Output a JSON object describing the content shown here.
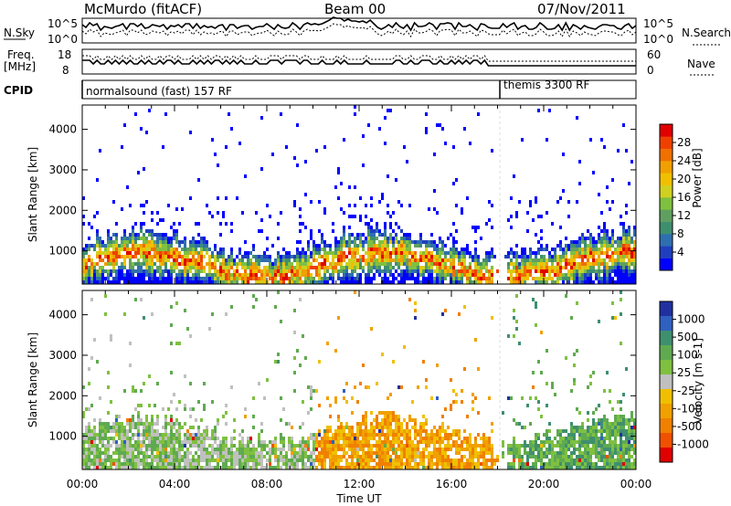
{
  "header": {
    "station": "McMurdo (fitACF)",
    "beam": "Beam 00",
    "date": "07/Nov/2011"
  },
  "noise_panel": {
    "left_label": "N.Sky",
    "right_label": "N.Search",
    "left_ticks": [
      "10^5",
      "10^0"
    ],
    "right_ticks": [
      "10^5",
      "10^0"
    ]
  },
  "freq_panel": {
    "left_label_line1": "Freq.",
    "left_label_line2": "[MHz]",
    "left_ticks": [
      "18",
      "8"
    ],
    "right_label": "Nave",
    "right_ticks": [
      "60",
      "0"
    ]
  },
  "cpid_panel": {
    "label": "CPID",
    "modes": [
      {
        "text": "normalsound (fast) 157 RF",
        "start_hour": 0
      },
      {
        "text": "themis 3300 RF",
        "start_hour": 18.1
      }
    ]
  },
  "chart_data": [
    {
      "type": "heatmap",
      "name": "power",
      "ylabel": "Slant Range [km]",
      "xlabel": "",
      "x_tick_labels": [
        "00:00",
        "04:00",
        "08:00",
        "12:00",
        "16:00",
        "20:00",
        "00:00"
      ],
      "x_range_hours": [
        0,
        24
      ],
      "y_ticks": [
        1000,
        2000,
        3000,
        4000
      ],
      "ylim": [
        180,
        4600
      ],
      "colorbar": {
        "label": "Power [dB]",
        "ticks": [
          "4",
          "8",
          "12",
          "16",
          "20",
          "24",
          "28"
        ],
        "colors": [
          "#0000ff",
          "#1f3fbf",
          "#2f6fb0",
          "#3f8f6f",
          "#5fa060",
          "#7fc040",
          "#d0d020",
          "#f0c000",
          "#f0a000",
          "#f07000",
          "#f04000",
          "#e00000"
        ]
      }
    },
    {
      "type": "heatmap",
      "name": "velocity",
      "ylabel": "Slant Range [km]",
      "xlabel": "Time UT",
      "x_tick_labels": [
        "00:00",
        "04:00",
        "08:00",
        "12:00",
        "16:00",
        "20:00",
        "00:00"
      ],
      "x_range_hours": [
        0,
        24
      ],
      "y_ticks": [
        1000,
        2000,
        3000,
        4000
      ],
      "ylim": [
        180,
        4600
      ],
      "colorbar": {
        "label": "Velocity [m s-1]",
        "ticks": [
          "1000",
          "500",
          "100",
          "25",
          "-25",
          "-100",
          "-500",
          "-1000"
        ],
        "colors": [
          "#2030a0",
          "#3060c0",
          "#3f8f6f",
          "#5faa50",
          "#7fc040",
          "#c0c0c0",
          "#f0c000",
          "#f0a000",
          "#f08000",
          "#f05000",
          "#e00000"
        ]
      }
    }
  ]
}
